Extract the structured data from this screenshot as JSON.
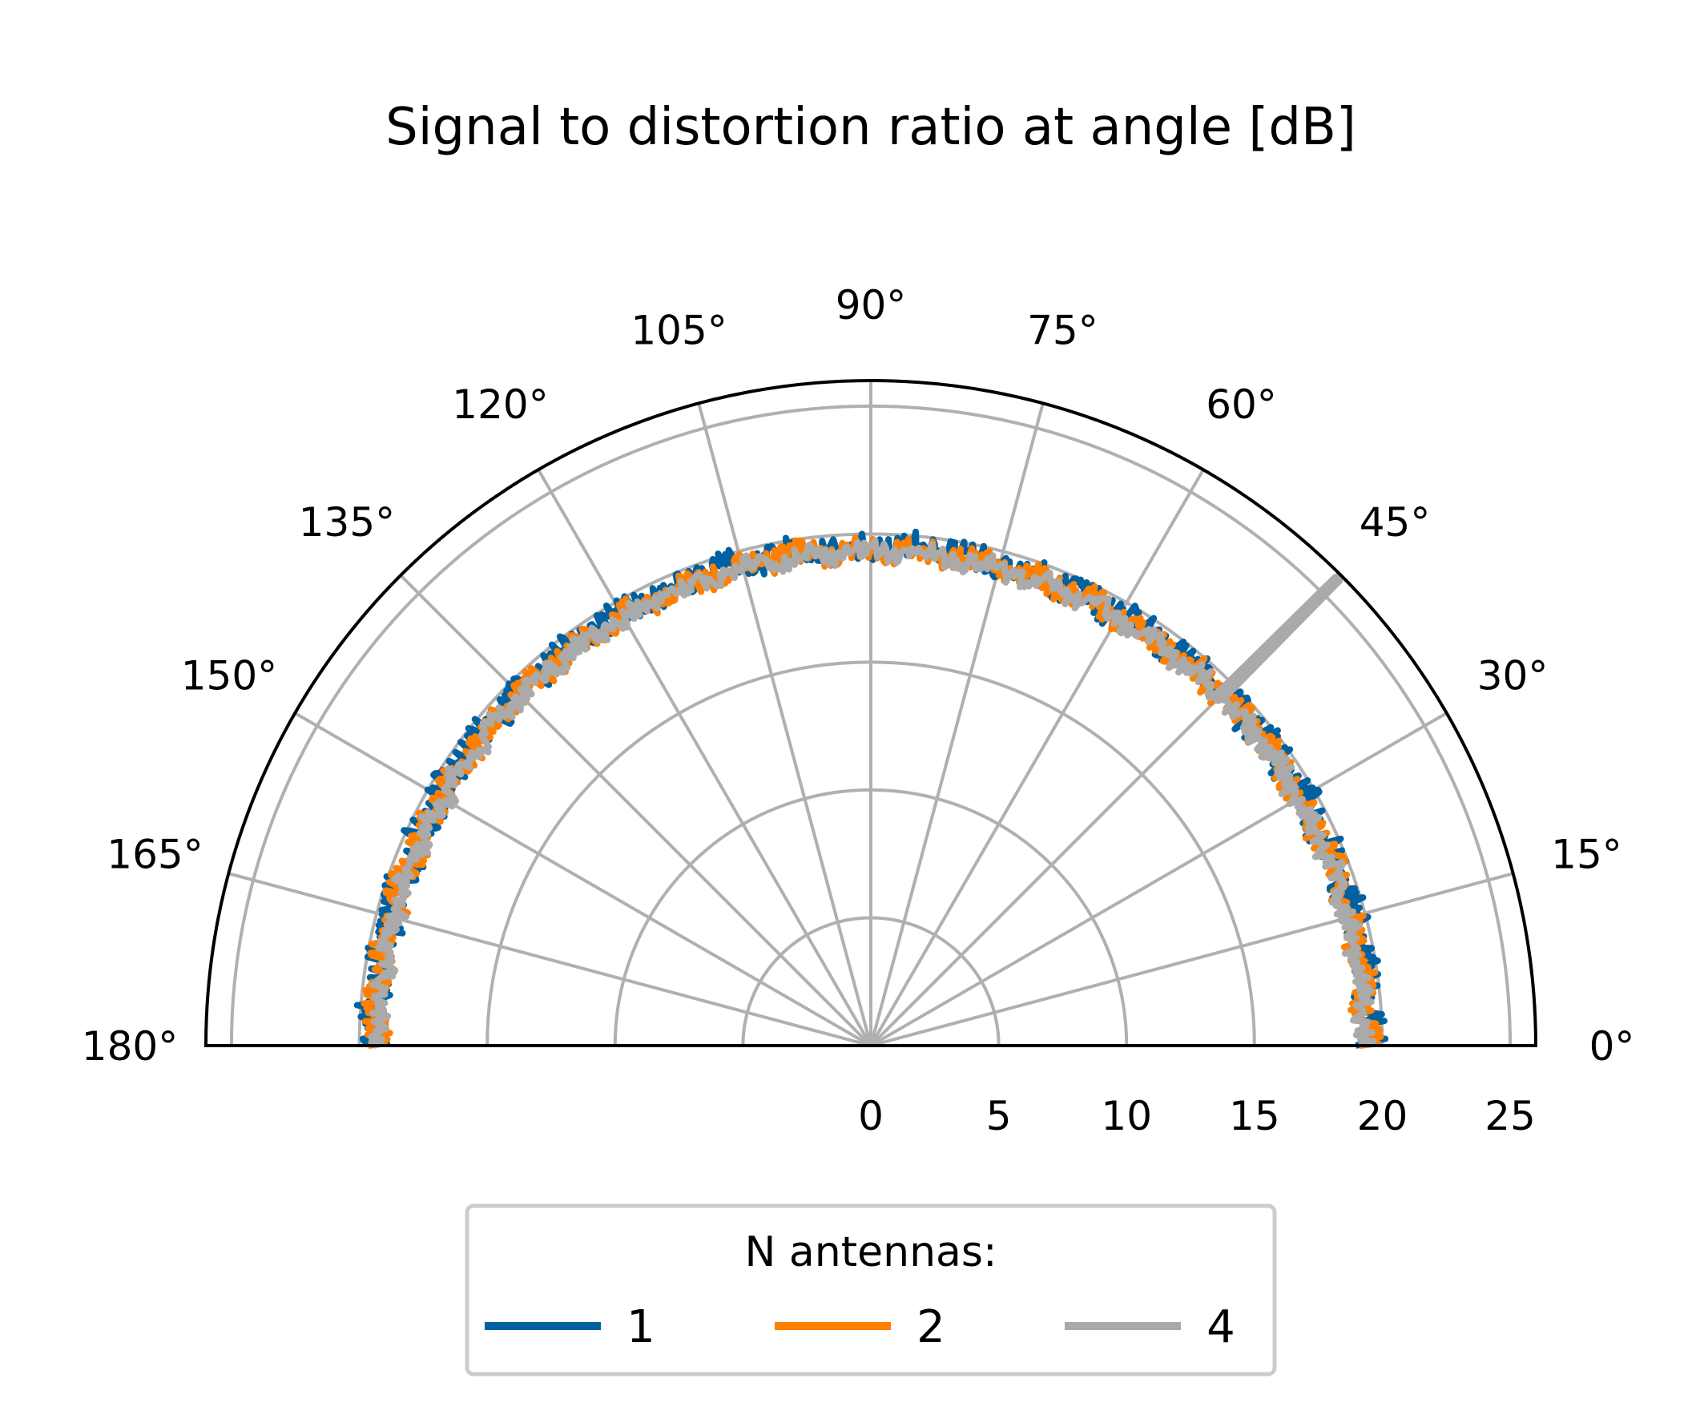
{
  "chart_data": {
    "type": "polar-line",
    "title": "Signal to distortion ratio at angle [dB]",
    "theta_range_deg": [
      0,
      180
    ],
    "r_range": [
      0,
      26
    ],
    "r_ticks": [
      "0",
      "5",
      "10",
      "15",
      "20",
      "25"
    ],
    "theta_ticks": [
      "0°",
      "15°",
      "30°",
      "45°",
      "60°",
      "75°",
      "90°",
      "105°",
      "120°",
      "135°",
      "150°",
      "165°",
      "180°"
    ],
    "grid": true,
    "legend": {
      "title": "N antennas:",
      "placement": "bottom-center",
      "entries": [
        "1",
        "2",
        "4"
      ]
    },
    "series": [
      {
        "name": "1",
        "color": "#0060a0",
        "base_r": 19.5,
        "noise": 0.55
      },
      {
        "name": "2",
        "color": "#ff8000",
        "base_r": 19.4,
        "noise": 0.45
      },
      {
        "name": "4",
        "color": "#aaaaaa",
        "base_r": 19.3,
        "noise": 0.35,
        "spike": {
          "theta_deg": 45,
          "r_from": 19.2,
          "r_to": 25.8
        }
      }
    ]
  }
}
